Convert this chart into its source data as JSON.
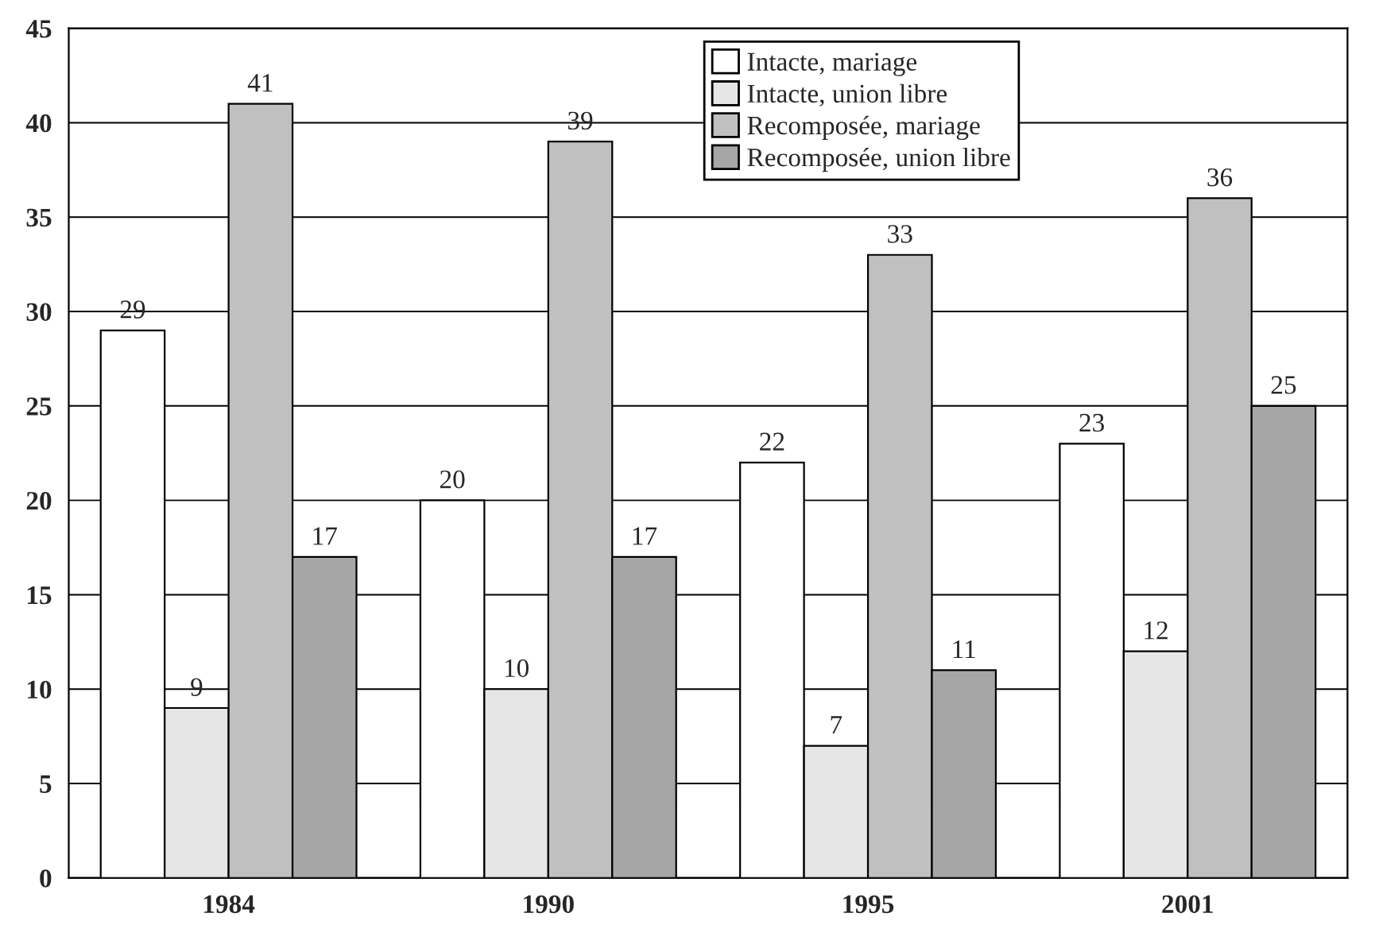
{
  "chart_data": {
    "type": "bar",
    "categories": [
      "1984",
      "1990",
      "1995",
      "2001"
    ],
    "series": [
      {
        "name": "Intacte, mariage",
        "color": "#ffffff",
        "values": [
          29,
          20,
          22,
          23
        ]
      },
      {
        "name": "Intacte, union libre",
        "color": "#e6e6e6",
        "values": [
          9,
          10,
          7,
          12
        ]
      },
      {
        "name": "Recomposée, mariage",
        "color": "#c0c0c0",
        "values": [
          41,
          39,
          33,
          36
        ]
      },
      {
        "name": "Recomposée, union libre",
        "color": "#a6a6a6",
        "values": [
          17,
          17,
          11,
          25
        ]
      }
    ],
    "ylim": [
      0,
      45
    ],
    "yticks": [
      0,
      5,
      10,
      15,
      20,
      25,
      30,
      35,
      40,
      45
    ],
    "grid": "y",
    "legend": "top",
    "data_labels": true
  }
}
